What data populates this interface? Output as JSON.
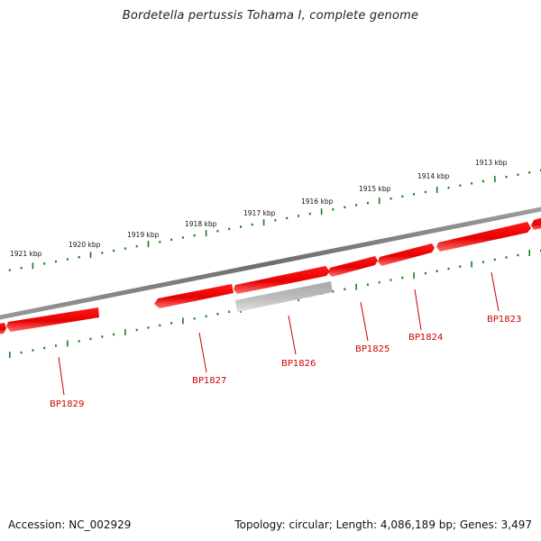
{
  "title": "Bordetella pertussis Tohama I, complete genome",
  "footer": {
    "accession": "Accession: NC_002929",
    "summary": "Topology: circular; Length: 4,086,189 bp; Genes: 3,497"
  },
  "kbp_labels": [
    "1913 kbp",
    "1914 kbp",
    "1915 kbp",
    "1916 kbp",
    "1917 kbp",
    "1918 kbp",
    "1919 kbp",
    "1920 kbp",
    "1921 kbp"
  ],
  "gene_labels": [
    "BP1823",
    "BP1824",
    "BP1825",
    "BP1826",
    "BP1827",
    "BP1829"
  ],
  "colors": {
    "gene": "#ee0000",
    "gene_alt": "#b8b8b8",
    "backbone": "#808080",
    "ticks": "#1a7a1a",
    "label": "#cc0000"
  }
}
